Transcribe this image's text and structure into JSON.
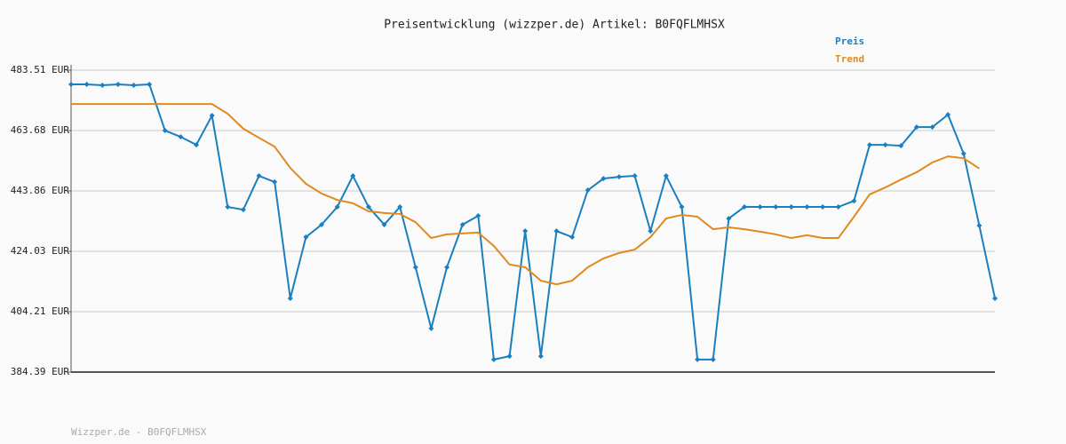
{
  "chart_data": {
    "type": "line",
    "title": "Preisentwicklung (wizzper.de) Artikel: B0FQFLMHSX",
    "footer": "Wizzper.de - B0FQFLMHSX",
    "legend": "top-right",
    "grid": true,
    "ylim": [
      384.39,
      483.51
    ],
    "yticks": [
      {
        "value": 384.39,
        "label": "384.39 EUR"
      },
      {
        "value": 404.21,
        "label": "404.21 EUR"
      },
      {
        "value": 424.03,
        "label": "424.03 EUR"
      },
      {
        "value": 443.86,
        "label": "443.86 EUR"
      },
      {
        "value": 463.68,
        "label": "463.68 EUR"
      },
      {
        "value": 483.51,
        "label": "483.51 EUR"
      }
    ],
    "categories": [
      null,
      null,
      null,
      null,
      null,
      null,
      null,
      null,
      null,
      null,
      null,
      null,
      null,
      null,
      null,
      null,
      null,
      null,
      null,
      null,
      null,
      null,
      null,
      null,
      null,
      null,
      null,
      null,
      null,
      null,
      null,
      null,
      null,
      null,
      null,
      null,
      null,
      null,
      null,
      null,
      null,
      null,
      null,
      null,
      null,
      null,
      null,
      null,
      null,
      null,
      null,
      null,
      null,
      null,
      null,
      null,
      null,
      null,
      null,
      null
    ],
    "series": [
      {
        "name": "Preis",
        "color": "#1a7fc0",
        "markers": true,
        "values": [
          478.85,
          478.85,
          478.55,
          478.85,
          478.55,
          478.85,
          463.7,
          461.6,
          459.0,
          468.6,
          438.6,
          437.7,
          448.8,
          446.8,
          408.6,
          428.7,
          432.8,
          438.6,
          448.8,
          438.6,
          432.8,
          438.6,
          418.8,
          398.7,
          418.8,
          432.8,
          435.7,
          388.5,
          389.6,
          430.7,
          389.6,
          430.7,
          428.7,
          444.1,
          447.9,
          448.5,
          448.8,
          430.7,
          448.8,
          438.6,
          388.5,
          388.5,
          434.8,
          438.6,
          438.6,
          438.6,
          438.6,
          438.6,
          438.6,
          438.6,
          440.6,
          459.0,
          459.0,
          458.7,
          464.8,
          464.8,
          468.9,
          456.1,
          432.5,
          408.6
        ]
      },
      {
        "name": "Trend",
        "color": "#e08a1e",
        "markers": false,
        "values": [
          472.4,
          472.4,
          472.4,
          472.4,
          472.4,
          472.4,
          472.4,
          472.4,
          472.4,
          472.4,
          469.2,
          464.3,
          461.3,
          458.4,
          451.4,
          446.2,
          443.0,
          440.9,
          439.8,
          437.2,
          436.6,
          436.3,
          433.6,
          428.4,
          429.6,
          429.9,
          430.2,
          425.8,
          419.7,
          418.8,
          414.4,
          413.2,
          414.4,
          418.8,
          421.7,
          423.5,
          424.6,
          428.7,
          434.8,
          436.0,
          435.4,
          431.3,
          431.9,
          431.3,
          430.5,
          429.6,
          428.4,
          429.3,
          428.4,
          428.4,
          435.4,
          442.7,
          445.0,
          447.6,
          450.0,
          453.2,
          455.2,
          454.6,
          451.2,
          null
        ]
      }
    ]
  }
}
